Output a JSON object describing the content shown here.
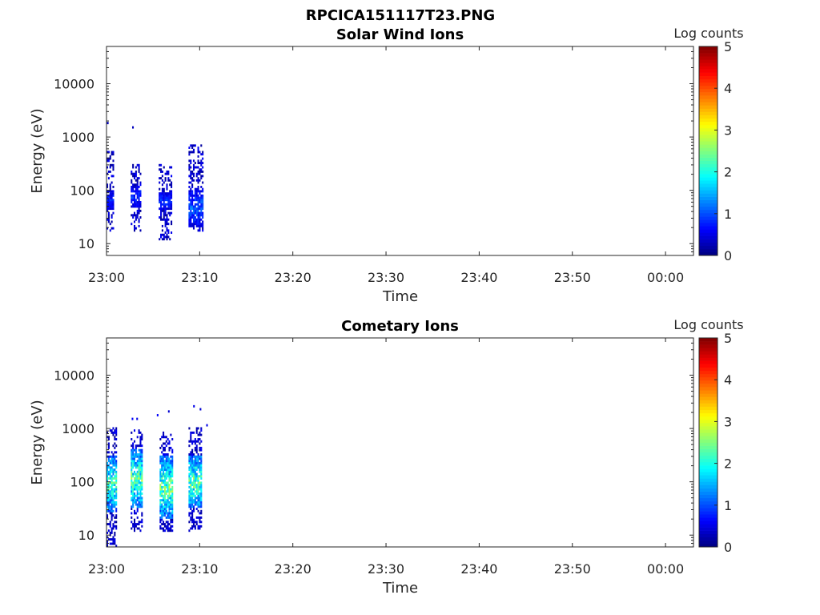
{
  "figure_title": "RPCICA151117T23.PNG",
  "chart_data": [
    {
      "type": "heatmap",
      "title": "Solar Wind Ions",
      "xlabel": "Time",
      "ylabel": "Energy (eV)",
      "x_ticks": [
        "23:00",
        "23:10",
        "23:20",
        "23:30",
        "23:40",
        "23:50",
        "00:00"
      ],
      "x_range_min": [
        0,
        63
      ],
      "y_scale": "log",
      "y_range_eV": [
        6,
        50000
      ],
      "y_ticks": [
        {
          "value": 10,
          "label": "10"
        },
        {
          "value": 100,
          "label": "100"
        },
        {
          "value": 1000,
          "label": "1000"
        },
        {
          "value": 10000,
          "label": "10000"
        }
      ],
      "colorbar": {
        "title": "Log counts",
        "range": [
          0,
          5
        ],
        "ticks": [
          "0",
          "1",
          "2",
          "3",
          "4",
          "5"
        ],
        "colormap": "jet"
      },
      "grid": false,
      "bursts": [
        {
          "t_start": 0.0,
          "t_end": 0.7,
          "e_min": 18,
          "e_max": 500,
          "core_min": 40,
          "core_max": 100,
          "peak": 0.9
        },
        {
          "t_start": 2.6,
          "t_end": 3.7,
          "e_min": 18,
          "e_max": 300,
          "core_min": 45,
          "core_max": 120,
          "peak": 1.0
        },
        {
          "t_start": 5.6,
          "t_end": 7.0,
          "e_min": 12,
          "e_max": 300,
          "core_min": 40,
          "core_max": 90,
          "peak": 1.0
        },
        {
          "t_start": 8.8,
          "t_end": 10.3,
          "e_min": 18,
          "e_max": 700,
          "core_min": 20,
          "core_max": 100,
          "peak": 1.3
        }
      ],
      "isolated_points": [
        {
          "t": 0.05,
          "e": 1750,
          "c": 0.3
        },
        {
          "t": 2.75,
          "e": 1450,
          "c": 0.3
        },
        {
          "t": 8.8,
          "e": 450,
          "c": 0.4
        }
      ]
    },
    {
      "type": "heatmap",
      "title": "Cometary Ions",
      "xlabel": "Time",
      "ylabel": "Energy (eV)",
      "x_ticks": [
        "23:00",
        "23:10",
        "23:20",
        "23:30",
        "23:40",
        "23:50",
        "00:00"
      ],
      "x_range_min": [
        0,
        63
      ],
      "y_scale": "log",
      "y_range_eV": [
        6,
        50000
      ],
      "y_ticks": [
        {
          "value": 10,
          "label": "10"
        },
        {
          "value": 100,
          "label": "100"
        },
        {
          "value": 1000,
          "label": "1000"
        },
        {
          "value": 10000,
          "label": "10000"
        }
      ],
      "colorbar": {
        "title": "Log counts",
        "range": [
          0,
          5
        ],
        "ticks": [
          "0",
          "1",
          "2",
          "3",
          "4",
          "5"
        ],
        "colormap": "jet"
      },
      "grid": false,
      "bursts": [
        {
          "t_start": 0.0,
          "t_end": 1.0,
          "e_min": 6,
          "e_max": 1000,
          "core_min": 25,
          "core_max": 300,
          "peak": 2.6
        },
        {
          "t_start": 2.6,
          "t_end": 3.8,
          "e_min": 12,
          "e_max": 900,
          "core_min": 30,
          "core_max": 400,
          "peak": 2.7
        },
        {
          "t_start": 5.7,
          "t_end": 7.0,
          "e_min": 12,
          "e_max": 800,
          "core_min": 20,
          "core_max": 300,
          "peak": 2.8
        },
        {
          "t_start": 8.8,
          "t_end": 10.2,
          "e_min": 12,
          "e_max": 1000,
          "core_min": 30,
          "core_max": 300,
          "peak": 2.8
        }
      ],
      "isolated_points": [
        {
          "t": 2.7,
          "e": 1450,
          "c": 0.6
        },
        {
          "t": 3.2,
          "e": 1450,
          "c": 0.5
        },
        {
          "t": 5.4,
          "e": 1700,
          "c": 0.6
        },
        {
          "t": 6.6,
          "e": 2000,
          "c": 0.4
        },
        {
          "t": 9.3,
          "e": 2500,
          "c": 0.5
        },
        {
          "t": 10.0,
          "e": 2200,
          "c": 0.4
        },
        {
          "t": 10.7,
          "e": 1100,
          "c": 0.5
        }
      ]
    }
  ]
}
